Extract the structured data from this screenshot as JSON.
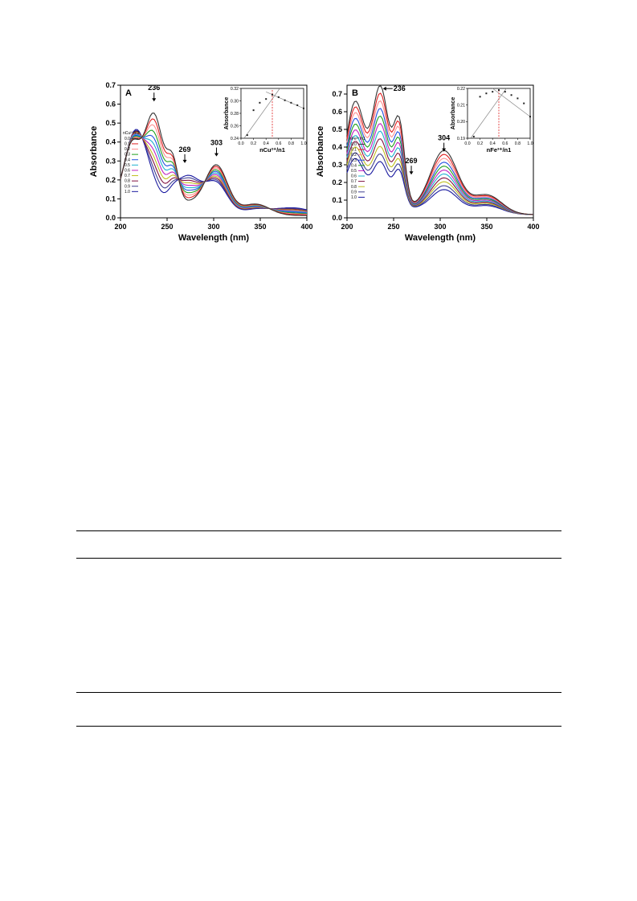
{
  "chart_data": [
    {
      "type": "line",
      "panel_label": "A",
      "xlabel": "Wavelength (nm)",
      "ylabel": "Absorbance",
      "xlim": [
        200,
        400
      ],
      "ylim": [
        0,
        0.7
      ],
      "xticks": [
        200,
        250,
        300,
        350,
        400
      ],
      "yticks": [
        0.0,
        0.1,
        0.2,
        0.3,
        0.4,
        0.5,
        0.6,
        0.7
      ],
      "legend": {
        "title": "nCu²⁺/n1",
        "entries": [
          "0.0",
          "0.1",
          "0.2",
          "0.3",
          "0.4",
          "0.5",
          "0.6",
          "0.7",
          "0.8",
          "0.9",
          "1.0"
        ],
        "placement": "left-middle"
      },
      "annotations": [
        {
          "text": "236",
          "x": 236,
          "y": 0.61,
          "arrow": "down"
        },
        {
          "text": "269",
          "x": 269,
          "y": 0.285,
          "arrow": "down"
        },
        {
          "text": "303",
          "x": 303,
          "y": 0.32,
          "arrow": "down"
        }
      ],
      "series_colors": [
        "#333333",
        "#e02020",
        "#ff9090",
        "#20a020",
        "#2050e0",
        "#20b0d0",
        "#c020c0",
        "#c0c020",
        "#801040",
        "#404090",
        "#1a1aa0"
      ],
      "series_params": {
        "fractions": [
          0,
          0.1,
          0.2,
          0.3,
          0.4,
          0.5,
          0.6,
          0.7,
          0.8,
          0.9,
          1.0
        ]
      },
      "inset": {
        "xlabel": "nCu²⁺/n1",
        "ylabel": "Absorbance",
        "xlim": [
          0.0,
          1.0
        ],
        "ylim": [
          0.24,
          0.32
        ],
        "xticks": [
          "0.0",
          "0.2",
          "0.4",
          "0.6",
          "0.8",
          "1.0"
        ],
        "yticks": [
          "0.24",
          "0.26",
          "0.28",
          "0.30",
          "0.32"
        ],
        "x": [
          0.1,
          0.2,
          0.3,
          0.4,
          0.5,
          0.6,
          0.7,
          0.8,
          0.9,
          1.0
        ],
        "values": [
          0.245,
          0.285,
          0.297,
          0.303,
          0.31,
          0.306,
          0.301,
          0.297,
          0.293,
          0.288
        ],
        "intersection_x": 0.5
      }
    },
    {
      "type": "line",
      "panel_label": "B",
      "xlabel": "Wavelength (nm)",
      "ylabel": "Absorbance",
      "xlim": [
        200,
        400
      ],
      "ylim": [
        0,
        0.75
      ],
      "xticks": [
        200,
        250,
        300,
        350,
        400
      ],
      "yticks": [
        0.0,
        0.1,
        0.2,
        0.3,
        0.4,
        0.5,
        0.6,
        0.7
      ],
      "legend": {
        "title": "nFe³⁺/n1",
        "entries": [
          "0.0",
          "0.1",
          "0.2",
          "0.3",
          "0.4",
          "0.5",
          "0.6",
          "0.7",
          "0.8",
          "0.9",
          "1.0"
        ],
        "placement": "left-middle"
      },
      "annotations": [
        {
          "text": "236",
          "x": 236,
          "y": 0.74,
          "arrow": "left"
        },
        {
          "text": "269",
          "x": 269,
          "y": 0.24,
          "arrow": "down"
        },
        {
          "text": "304",
          "x": 304,
          "y": 0.37,
          "arrow": "down"
        }
      ],
      "series_colors": [
        "#333333",
        "#e02020",
        "#ff9090",
        "#2050e0",
        "#20a020",
        "#c020c0",
        "#20b0d0",
        "#801040",
        "#c0c020",
        "#404090",
        "#1a1aa0"
      ],
      "series_params": {
        "fractions": [
          0,
          0.1,
          0.2,
          0.3,
          0.4,
          0.5,
          0.6,
          0.7,
          0.8,
          0.9,
          1.0
        ]
      },
      "inset": {
        "xlabel": "nFe³⁺/n1",
        "ylabel": "Absorbance",
        "xlim": [
          0.0,
          1.0
        ],
        "ylim": [
          0.19,
          0.22
        ],
        "xticks": [
          "0.0",
          "0.2",
          "0.4",
          "0.6",
          "0.8",
          "1.0"
        ],
        "yticks": [
          "0.19",
          "0.20",
          "0.21",
          "0.22"
        ],
        "x": [
          0.1,
          0.2,
          0.3,
          0.4,
          0.5,
          0.6,
          0.7,
          0.8,
          0.9,
          1.0
        ],
        "values": [
          0.191,
          0.215,
          0.217,
          0.218,
          0.219,
          0.218,
          0.216,
          0.214,
          0.211,
          0.203
        ],
        "intersection_x": 0.5
      }
    }
  ]
}
